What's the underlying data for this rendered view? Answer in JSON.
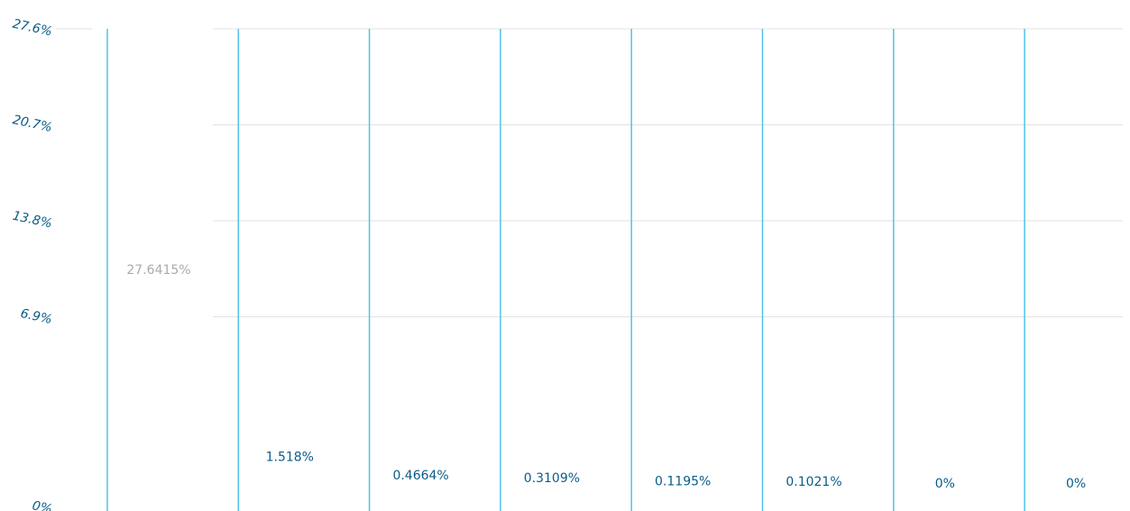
{
  "chart_data": {
    "type": "bar",
    "categories": [
      null,
      null,
      null,
      null,
      null,
      null,
      null,
      null
    ],
    "values": [
      27.6415,
      1.518,
      0.4664,
      0.3109,
      0.1195,
      0.1021,
      0,
      0
    ],
    "value_labels": [
      "27.6415%",
      "1.518%",
      "0.4664%",
      "0.3109%",
      "0.1195%",
      "0.1021%",
      "0%",
      "0%"
    ],
    "color": "#4fc3e8",
    "ylim": [
      0,
      27.6
    ],
    "yticks": [
      {
        "value": 0,
        "label": "0%"
      },
      {
        "value": 6.9,
        "label": "6.9%"
      },
      {
        "value": 13.8,
        "label": "13.8%"
      },
      {
        "value": 20.7,
        "label": "20.7%"
      },
      {
        "value": 27.6,
        "label": "27.6%"
      }
    ],
    "grid": true
  }
}
